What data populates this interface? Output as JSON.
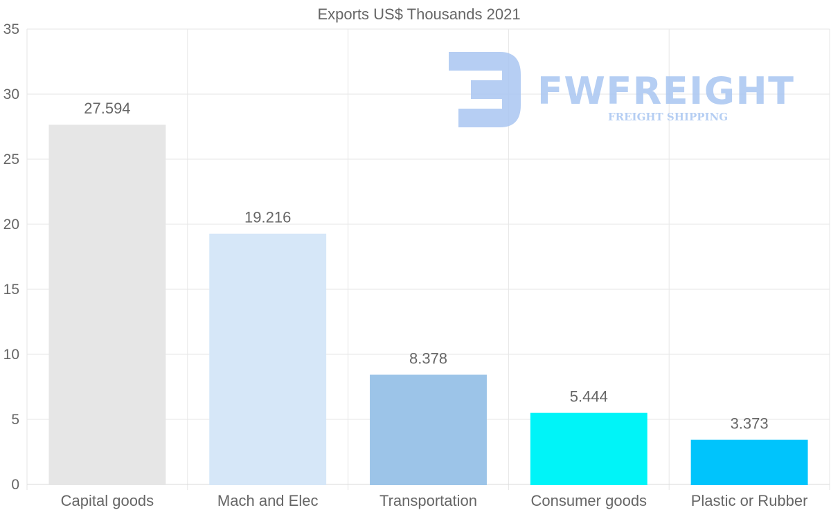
{
  "chart_data": {
    "type": "bar",
    "title": "Exports US$ Thousands 2021",
    "categories": [
      "Capital goods",
      "Mach and Elec",
      "Transportation",
      "Consumer goods",
      "Plastic or Rubber"
    ],
    "values": [
      27.594,
      19.216,
      8.378,
      5.444,
      3.373
    ],
    "data_labels": [
      "27.594",
      "19.216",
      "8.378",
      "5.444",
      "3.373"
    ],
    "colors": [
      "#e6e6e6",
      "#d6e7f8",
      "#9cc4e8",
      "#00f4f8",
      "#00c4fc"
    ],
    "ylim": [
      0,
      35
    ],
    "yticks": [
      0,
      5,
      10,
      15,
      20,
      25,
      30,
      35
    ],
    "xlabel": "",
    "ylabel": "",
    "grid": true
  },
  "watermark": {
    "brand": "FWFREIGHT",
    "tagline": "FREIGHT SHIPPING",
    "color": "#a9c6f1"
  }
}
